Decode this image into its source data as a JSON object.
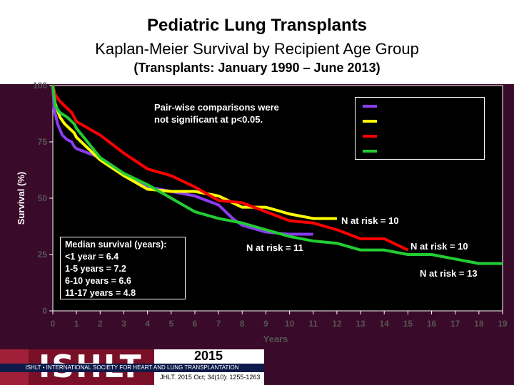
{
  "titles": {
    "main": "Pediatric Lung Transplants",
    "sub": "Kaplan-Meier Survival by Recipient Age Group",
    "range": "(Transplants: January 1990 – June 2013)"
  },
  "annotations": {
    "pairwise_line1": "Pair-wise comparisons were",
    "pairwise_line2": "not significant at p<0.05.",
    "median_title": "Median survival (years):",
    "median_1": "<1 year = 6.4",
    "median_2": "1-5 years = 7.2",
    "median_3": "6-10 years = 6.6",
    "median_4": "11-17 years = 4.8",
    "risk_yellow": "N at risk =  10",
    "risk_purple": "N at risk = 11",
    "risk_red": "N at risk = 10",
    "risk_green": "N at risk = 13"
  },
  "footer": {
    "logo_text": "ISHLT",
    "society": "ISHLT • INTERNATIONAL SOCIETY FOR HEART AND LUNG TRANSPLANTATION",
    "year": "2015",
    "citation": "JHLT. 2015 Oct; 34(10): 1255-1263"
  },
  "chart_data": {
    "type": "line",
    "xlabel": "Years",
    "ylabel": "Survival (%)",
    "xlim": [
      0,
      19
    ],
    "ylim": [
      0,
      100
    ],
    "x_ticks": [
      "0",
      "1",
      "2",
      "3",
      "4",
      "5",
      "6",
      "7",
      "8",
      "9",
      "10",
      "11",
      "12",
      "13",
      "14",
      "15",
      "16",
      "17",
      "18",
      "19"
    ],
    "y_ticks": [
      "0",
      "25",
      "50",
      "75",
      "100"
    ],
    "grid": false,
    "legend_position": "top-right",
    "series": [
      {
        "color": "#8b3cf0",
        "points": [
          [
            0,
            100
          ],
          [
            0.05,
            90
          ],
          [
            0.2,
            83
          ],
          [
            0.4,
            78
          ],
          [
            0.6,
            76
          ],
          [
            0.8,
            75
          ],
          [
            0.9,
            73
          ],
          [
            1.0,
            72
          ],
          [
            2,
            68
          ],
          [
            3,
            61
          ],
          [
            4,
            55
          ],
          [
            5,
            53
          ],
          [
            6,
            51
          ],
          [
            7,
            47
          ],
          [
            7.6,
            41
          ],
          [
            8,
            38
          ],
          [
            9,
            35
          ],
          [
            10,
            34
          ],
          [
            11,
            34
          ]
        ]
      },
      {
        "color": "#ffff00",
        "points": [
          [
            0,
            100
          ],
          [
            0.1,
            92
          ],
          [
            0.3,
            86
          ],
          [
            0.5,
            83
          ],
          [
            0.7,
            81
          ],
          [
            0.9,
            79
          ],
          [
            1.0,
            77
          ],
          [
            2,
            67
          ],
          [
            3,
            60
          ],
          [
            4,
            54
          ],
          [
            5,
            53
          ],
          [
            6,
            53
          ],
          [
            7,
            51
          ],
          [
            8,
            46
          ],
          [
            9,
            46
          ],
          [
            10,
            43
          ],
          [
            11,
            41
          ],
          [
            12,
            41
          ]
        ]
      },
      {
        "color": "#ff0000",
        "points": [
          [
            0,
            100
          ],
          [
            0.1,
            96
          ],
          [
            0.3,
            93
          ],
          [
            0.6,
            90
          ],
          [
            0.8,
            88
          ],
          [
            1.0,
            84
          ],
          [
            2,
            78
          ],
          [
            3,
            70
          ],
          [
            4,
            63
          ],
          [
            5,
            60
          ],
          [
            6,
            55
          ],
          [
            7,
            49
          ],
          [
            8,
            48
          ],
          [
            9,
            44
          ],
          [
            10,
            40
          ],
          [
            11,
            39
          ],
          [
            12,
            36
          ],
          [
            13,
            32
          ],
          [
            14,
            32
          ],
          [
            15,
            27
          ]
        ]
      },
      {
        "color": "#22cc33",
        "points": [
          [
            0,
            100
          ],
          [
            0.1,
            91
          ],
          [
            0.3,
            88
          ],
          [
            0.6,
            86
          ],
          [
            0.9,
            83
          ],
          [
            1.0,
            81
          ],
          [
            2,
            68
          ],
          [
            3,
            61
          ],
          [
            4,
            56
          ],
          [
            5,
            50
          ],
          [
            6,
            44
          ],
          [
            7,
            41
          ],
          [
            8,
            39
          ],
          [
            9,
            36
          ],
          [
            10,
            33
          ],
          [
            11,
            31
          ],
          [
            12,
            30
          ],
          [
            13,
            27
          ],
          [
            14,
            27
          ],
          [
            15,
            25
          ],
          [
            16,
            25
          ],
          [
            17,
            23
          ],
          [
            18,
            21
          ],
          [
            19,
            21
          ]
        ]
      }
    ]
  }
}
